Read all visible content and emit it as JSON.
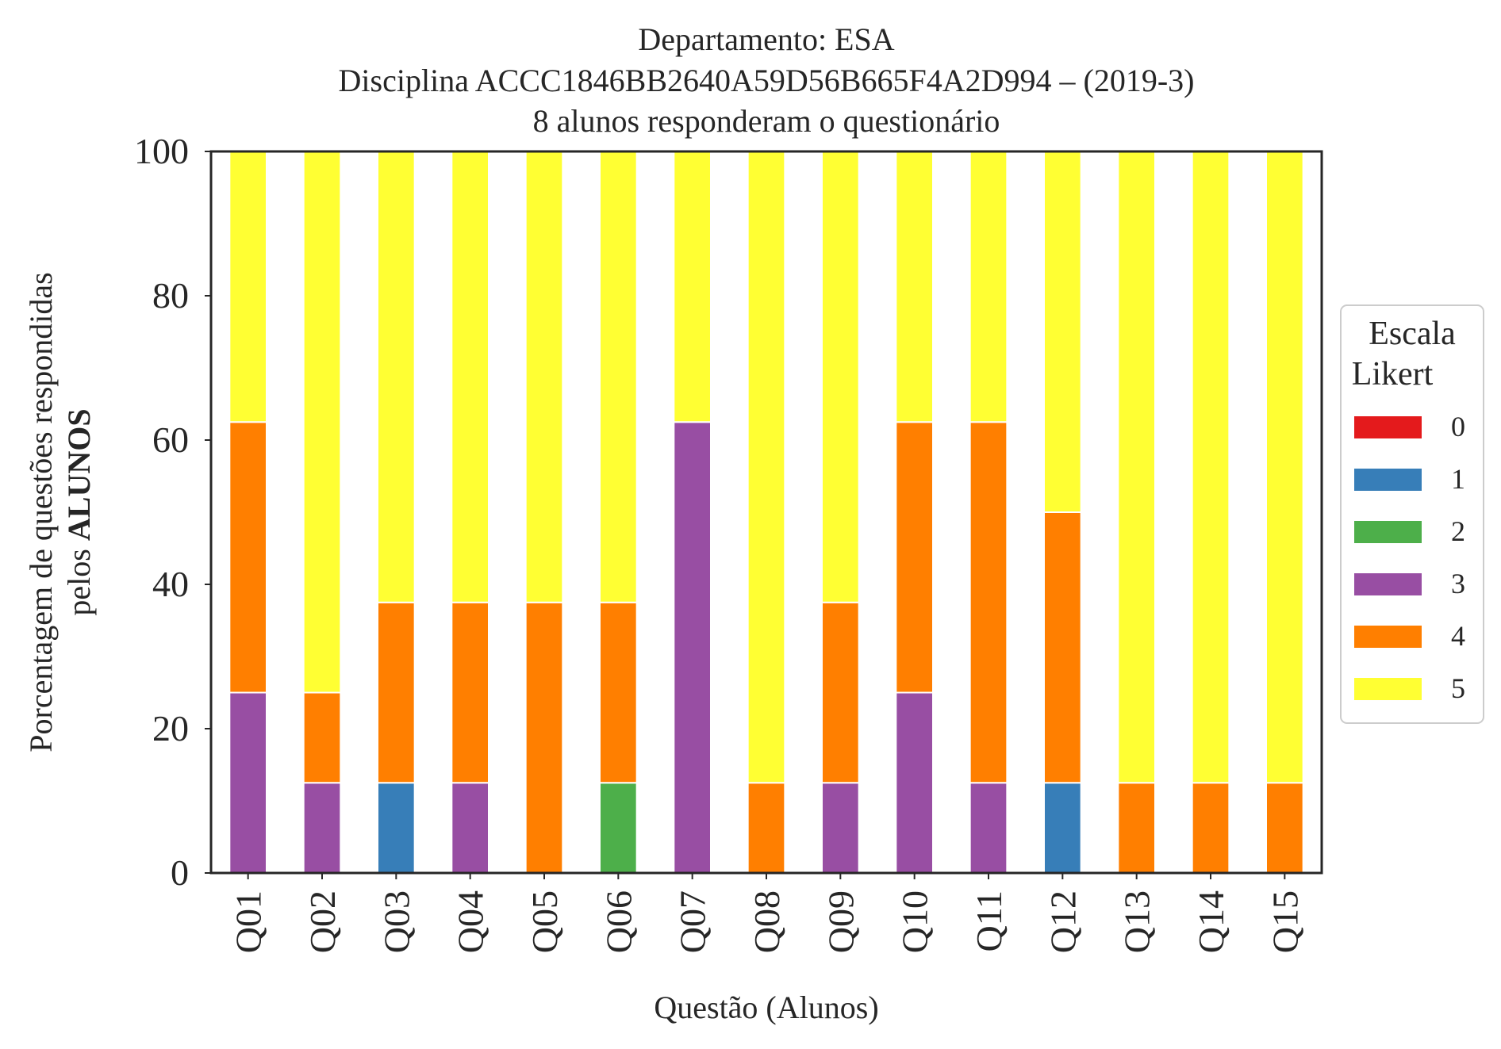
{
  "chart_data": {
    "type": "bar",
    "stacked": true,
    "title_lines": [
      "Departamento: ESA",
      "Disciplina ACCC1846BB2640A59D56B665F4A2D994 – (2019-3)",
      "8 alunos responderam o questionário"
    ],
    "xlabel": "Questão (Alunos)",
    "ylabel_line1": "Porcentagem de questões respondidas",
    "ylabel_line2_prefix": "pelos ",
    "ylabel_line2_bold": "ALUNOS",
    "ylim": [
      0,
      100
    ],
    "yticks": [
      0,
      20,
      40,
      60,
      80,
      100
    ],
    "grid": false,
    "legend": {
      "title_line1": "Escala",
      "title_line2": "Likert",
      "placement": "right"
    },
    "categories": [
      "Q01",
      "Q02",
      "Q03",
      "Q04",
      "Q05",
      "Q06",
      "Q07",
      "Q08",
      "Q09",
      "Q10",
      "Q11",
      "Q12",
      "Q13",
      "Q14",
      "Q15"
    ],
    "series": [
      {
        "name": "0",
        "color": "#e41a1c",
        "values": [
          0,
          0,
          0,
          0,
          0,
          0,
          0,
          0,
          0,
          0,
          0,
          0,
          0,
          0,
          0
        ]
      },
      {
        "name": "1",
        "color": "#377eb8",
        "values": [
          0,
          0,
          12.5,
          0,
          0,
          0,
          0,
          0,
          0,
          0,
          0,
          12.5,
          0,
          0,
          0
        ]
      },
      {
        "name": "2",
        "color": "#4daf4a",
        "values": [
          0,
          0,
          0,
          0,
          0,
          12.5,
          0,
          0,
          0,
          0,
          0,
          0,
          0,
          0,
          0
        ]
      },
      {
        "name": "3",
        "color": "#984ea3",
        "values": [
          25,
          12.5,
          0,
          12.5,
          0,
          0,
          62.5,
          0,
          12.5,
          25,
          12.5,
          0,
          0,
          0,
          0
        ]
      },
      {
        "name": "4",
        "color": "#ff7f00",
        "values": [
          37.5,
          12.5,
          25,
          25,
          37.5,
          25,
          0,
          12.5,
          25,
          37.5,
          50,
          37.5,
          12.5,
          12.5,
          12.5
        ]
      },
      {
        "name": "5",
        "color": "#ffff33",
        "values": [
          37.5,
          75,
          62.5,
          62.5,
          62.5,
          62.5,
          37.5,
          87.5,
          62.5,
          37.5,
          37.5,
          50,
          87.5,
          87.5,
          87.5
        ]
      }
    ]
  }
}
